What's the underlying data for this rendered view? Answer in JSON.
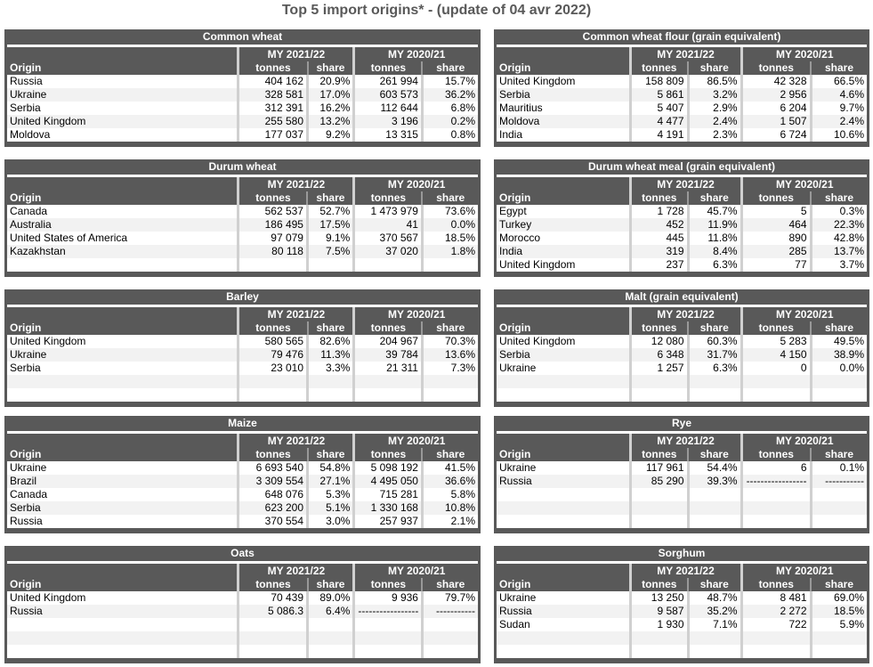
{
  "title": "Top 5 import origins* - (update of 04 avr 2022)",
  "headers": {
    "origin": "Origin",
    "my1": "MY 2021/22",
    "my2": "MY 2020/21",
    "tonnes": "tonnes",
    "share": "share"
  },
  "panels": [
    {
      "title": "Common wheat",
      "rows": [
        [
          "Russia",
          "404 162",
          "20.9%",
          "261 994",
          "15.7%"
        ],
        [
          "Ukraine",
          "328 581",
          "17.0%",
          "603 573",
          "36.2%"
        ],
        [
          "Serbia",
          "312 391",
          "16.2%",
          "112 644",
          "6.8%"
        ],
        [
          "United Kingdom",
          "255 580",
          "13.2%",
          "3 196",
          "0.2%"
        ],
        [
          "Moldova",
          "177 037",
          "9.2%",
          "13 315",
          "0.8%"
        ]
      ]
    },
    {
      "title": "Common wheat flour (grain equivalent)",
      "rows": [
        [
          "United Kingdom",
          "158 809",
          "86.5%",
          "42 328",
          "66.5%"
        ],
        [
          "Serbia",
          "5 861",
          "3.2%",
          "2 956",
          "4.6%"
        ],
        [
          "Mauritius",
          "5 407",
          "2.9%",
          "6 204",
          "9.7%"
        ],
        [
          "Moldova",
          "4 477",
          "2.4%",
          "1 507",
          "2.4%"
        ],
        [
          "India",
          "4 191",
          "2.3%",
          "6 724",
          "10.6%"
        ]
      ]
    },
    {
      "title": "Durum wheat",
      "rows": [
        [
          "Canada",
          "562 537",
          "52.7%",
          "1 473 979",
          "73.6%"
        ],
        [
          "Australia",
          "186 495",
          "17.5%",
          "41",
          "0.0%"
        ],
        [
          "United States of America",
          "97 079",
          "9.1%",
          "370 567",
          "18.5%"
        ],
        [
          "Kazakhstan",
          "80 118",
          "7.5%",
          "37 020",
          "1.8%"
        ]
      ]
    },
    {
      "title": "Durum wheat meal (grain equivalent)",
      "rows": [
        [
          "Egypt",
          "1 728",
          "45.7%",
          "5",
          "0.3%"
        ],
        [
          "Turkey",
          "452",
          "11.9%",
          "464",
          "22.3%"
        ],
        [
          "Morocco",
          "445",
          "11.8%",
          "890",
          "42.8%"
        ],
        [
          "India",
          "319",
          "8.4%",
          "285",
          "13.7%"
        ],
        [
          "United Kingdom",
          "237",
          "6.3%",
          "77",
          "3.7%"
        ]
      ]
    },
    {
      "title": "Barley",
      "rows": [
        [
          "United Kingdom",
          "580 565",
          "82.6%",
          "204 967",
          "70.3%"
        ],
        [
          "Ukraine",
          "79 476",
          "11.3%",
          "39 784",
          "13.6%"
        ],
        [
          "Serbia",
          "23 010",
          "3.3%",
          "21 311",
          "7.3%"
        ]
      ]
    },
    {
      "title": "Malt (grain equivalent)",
      "rows": [
        [
          "United Kingdom",
          "12 080",
          "60.3%",
          "5 283",
          "49.5%"
        ],
        [
          "Serbia",
          "6 348",
          "31.7%",
          "4 150",
          "38.9%"
        ],
        [
          "Ukraine",
          "1 257",
          "6.3%",
          "0",
          "0.0%"
        ]
      ]
    },
    {
      "title": "Maize",
      "rows": [
        [
          "Ukraine",
          "6 693 540",
          "54.8%",
          "5 098 192",
          "41.5%"
        ],
        [
          "Brazil",
          "3 309 554",
          "27.1%",
          "4 495 050",
          "36.6%"
        ],
        [
          "Canada",
          "648 076",
          "5.3%",
          "715 281",
          "5.8%"
        ],
        [
          "Serbia",
          "623 200",
          "5.1%",
          "1 330 168",
          "10.8%"
        ],
        [
          "Russia",
          "370 554",
          "3.0%",
          "257 937",
          "2.1%"
        ]
      ]
    },
    {
      "title": "Rye",
      "rows": [
        [
          "Ukraine",
          "117 961",
          "54.4%",
          "6",
          "0.1%"
        ],
        [
          "Russia",
          "85 290",
          "39.3%",
          "-----------------",
          "-----------"
        ]
      ]
    },
    {
      "title": "Oats",
      "rows": [
        [
          "United Kingdom",
          "70 439",
          "89.0%",
          "9 936",
          "79.7%"
        ],
        [
          "Russia",
          "5 086.3",
          "6.4%",
          "-----------------",
          "-----------"
        ]
      ]
    },
    {
      "title": "Sorghum",
      "rows": [
        [
          "Ukraine",
          "13 250",
          "48.7%",
          "8 481",
          "69.0%"
        ],
        [
          "Russia",
          "9 587",
          "35.2%",
          "2 272",
          "18.5%"
        ],
        [
          "Sudan",
          "1 930",
          "7.1%",
          "722",
          "5.9%"
        ]
      ]
    }
  ]
}
